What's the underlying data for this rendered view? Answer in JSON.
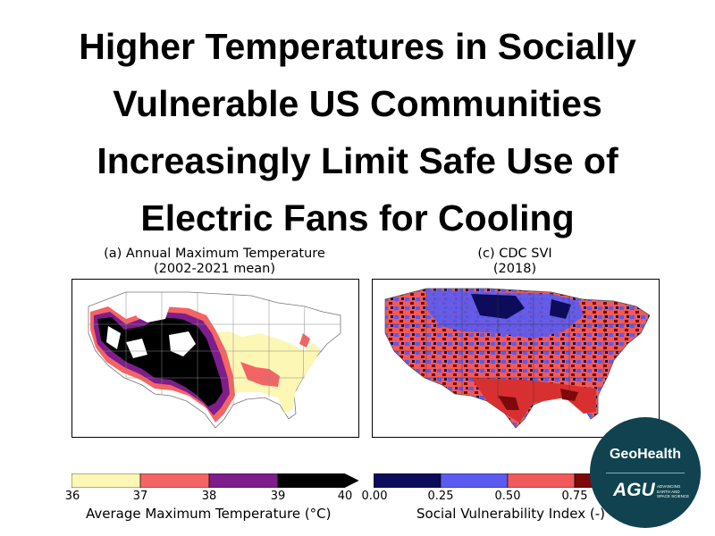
{
  "title_lines": [
    "Higher Temperatures in Socially",
    "Vulnerable US Communities",
    "Increasingly Limit Safe Use of",
    "Electric Fans for Cooling"
  ],
  "panel_a": {
    "title_line1": "(a) Annual Maximum Temperature",
    "title_line2": "(2002-2021 mean)",
    "colorbar": {
      "ticks": [
        "36",
        "37",
        "38",
        "39",
        "40"
      ],
      "label": "Average Maximum Temperature (°C)",
      "colors": [
        "#fdf7b6",
        "#f56464",
        "#7e1d8c",
        "#000000"
      ]
    }
  },
  "panel_c": {
    "title_line1": "(c) CDC SVI",
    "title_line2": "(2018)",
    "colorbar": {
      "ticks": [
        "0.00",
        "0.25",
        "0.50",
        "0.75"
      ],
      "label": "Social Vulnerability Index (-)",
      "colors": [
        "#0c0c5a",
        "#5b5bf0",
        "#f05a5a",
        "#7c0a0a"
      ]
    }
  },
  "badge": {
    "journal": "GeoHealth",
    "publisher": "AGU",
    "tagline": "ADVANCING EARTH AND SPACE SCIENCE",
    "color": "#10434f"
  }
}
